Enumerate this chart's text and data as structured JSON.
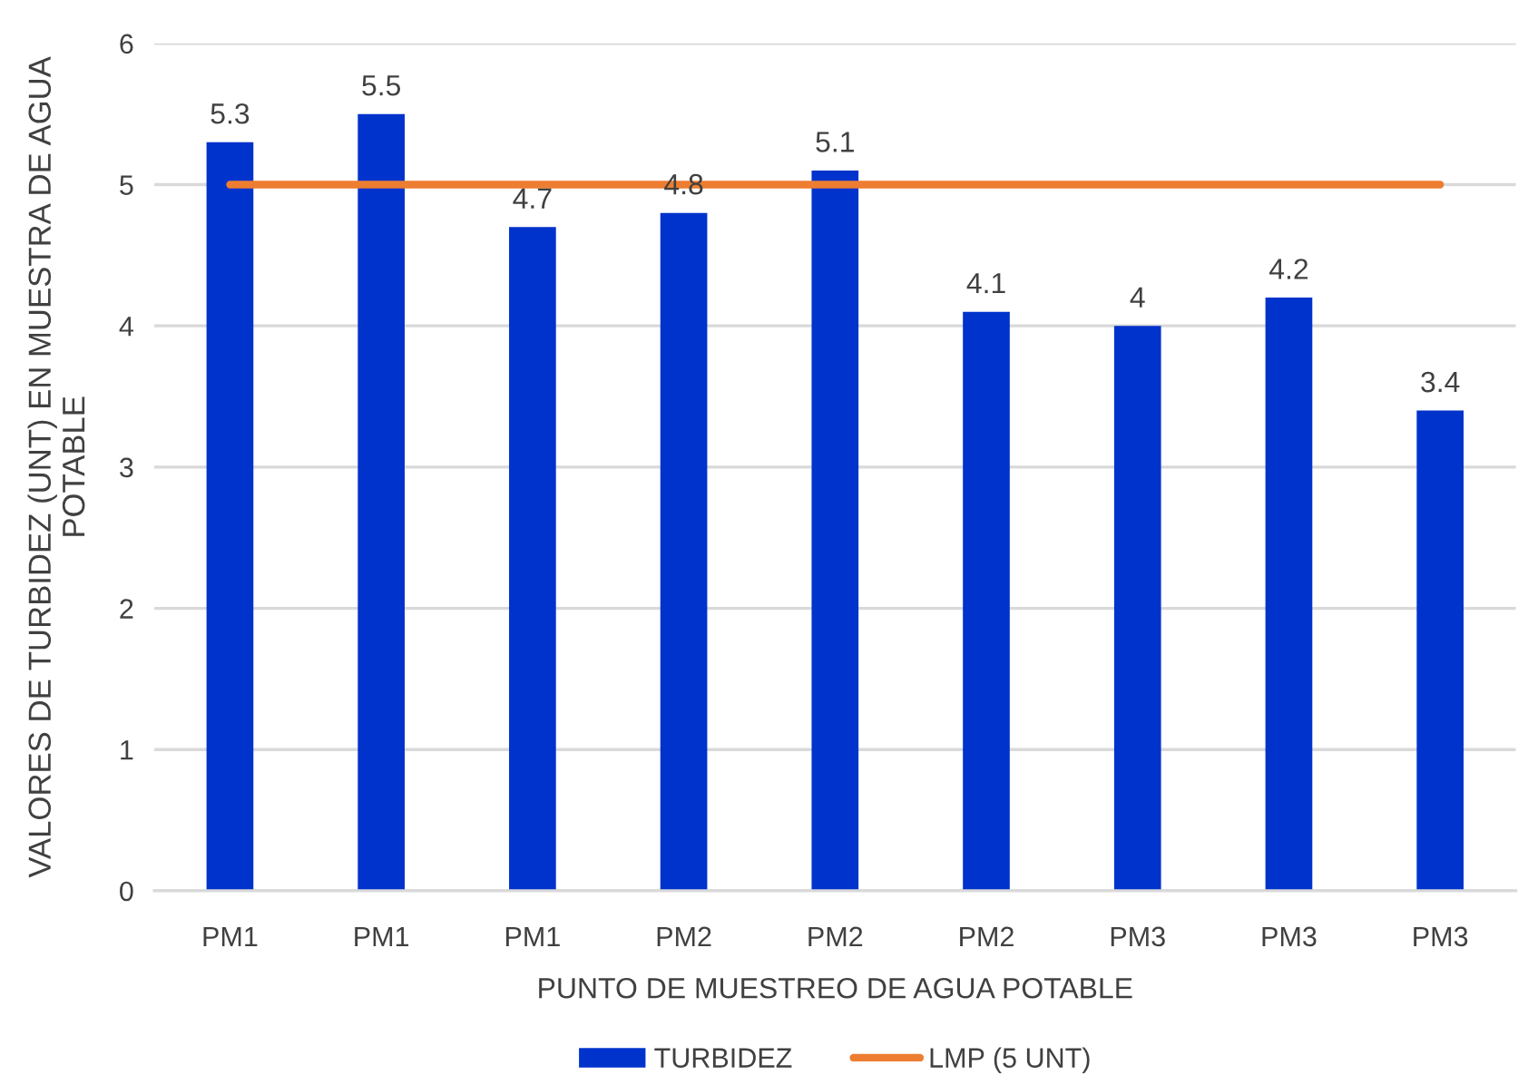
{
  "chart_data": {
    "type": "bar",
    "xlabel": "PUNTO DE MUESTREO DE AGUA POTABLE",
    "ylabel": "VALORES DE TURBIDEZ (UNT) EN MUESTRA DE AGUA POTABLE",
    "categories": [
      "PM1",
      "PM1",
      "PM1",
      "PM2",
      "PM2",
      "PM2",
      "PM3",
      "PM3",
      "PM3"
    ],
    "series": [
      {
        "name": "TURBIDEZ",
        "color": "#0033cc",
        "values": [
          5.3,
          5.5,
          4.7,
          4.8,
          5.1,
          4.1,
          4,
          4.2,
          3.4
        ],
        "value_labels": [
          "5.3",
          "5.5",
          "4.7",
          "4.8",
          "5.1",
          "4.1",
          "4",
          "4.2",
          "3.4"
        ]
      },
      {
        "name": "LMP (5 UNT)",
        "type": "line",
        "color": "#ed7d31",
        "values": [
          5,
          5,
          5,
          5,
          5,
          5,
          5,
          5,
          5
        ]
      }
    ],
    "ylim": [
      0,
      6
    ],
    "yticks": [
      0,
      1,
      2,
      3,
      4,
      5,
      6
    ],
    "grid": "y",
    "legend": "bottom"
  }
}
